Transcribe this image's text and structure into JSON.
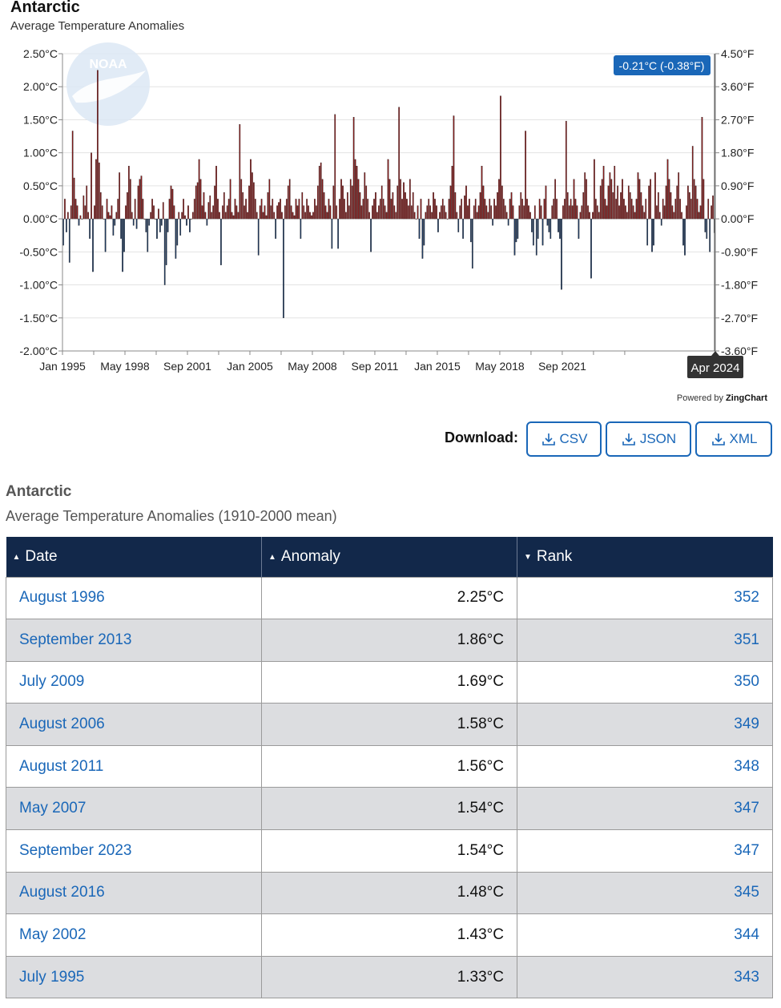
{
  "chart": {
    "title": "Antarctic",
    "subtitle": "Average Temperature Anomalies",
    "tooltip": "-0.21°C (-0.38°F)",
    "crosshair_label": "Apr 2024",
    "powered_by_prefix": "Powered by",
    "powered_by_brand": "ZingChart",
    "logo_text": "NOAA",
    "colors": {
      "positive": "#8b1a1a",
      "negative": "#1f3b63",
      "tooltip_bg": "#1a67b8",
      "crosshair_bg": "#333333"
    }
  },
  "chart_data": {
    "type": "bar",
    "title": "Antarctic",
    "subtitle": "Average Temperature Anomalies",
    "x_tick_labels": [
      "Jan 1995",
      "May 1998",
      "Sep 2001",
      "Jan 2005",
      "May 2008",
      "Sep 2011",
      "Jan 2015",
      "May 2018",
      "Sep 2021"
    ],
    "y_left_ticks": [
      "2.50°C",
      "2.00°C",
      "1.50°C",
      "1.00°C",
      "0.50°C",
      "0.00°C",
      "-0.50°C",
      "-1.00°C",
      "-1.50°C",
      "-2.00°C"
    ],
    "y_right_ticks": [
      "4.50°F",
      "3.60°F",
      "2.70°F",
      "1.80°F",
      "0.90°F",
      "0.00°F",
      "-0.90°F",
      "-1.80°F",
      "-2.70°F",
      "-3.60°F"
    ],
    "ylim": [
      -2.0,
      2.5
    ],
    "start": "Jan 1995",
    "end": "Apr 2024",
    "grid": true,
    "values": [
      -0.4,
      0.3,
      -0.2,
      0.1,
      -0.66,
      0.2,
      1.33,
      0.62,
      0.3,
      0.2,
      -0.1,
      0.05,
      0.0,
      0.35,
      0.2,
      0.5,
      0.1,
      -0.3,
      1.0,
      -0.8,
      0.2,
      0.9,
      2.25,
      0.85,
      0.4,
      0.2,
      0.0,
      -0.5,
      0.3,
      0.1,
      0.05,
      0.2,
      -0.25,
      -0.1,
      0.1,
      0.3,
      0.7,
      -0.3,
      -0.8,
      -0.5,
      0.2,
      0.4,
      0.8,
      0.6,
      0.1,
      -0.1,
      0.3,
      -0.15,
      0.5,
      0.6,
      0.65,
      0.3,
      0.0,
      -0.2,
      -0.5,
      -0.1,
      0.1,
      0.3,
      0.2,
      0.0,
      -0.3,
      0.15,
      -0.2,
      -0.1,
      0.25,
      -1.0,
      -0.7,
      -0.2,
      0.3,
      0.5,
      0.45,
      0.2,
      -0.6,
      -0.4,
      0.1,
      -0.25,
      0.1,
      0.3,
      0.05,
      -0.1,
      0.2,
      -0.2,
      0.0,
      0.1,
      0.3,
      0.5,
      0.55,
      0.9,
      0.6,
      0.2,
      0.4,
      0.1,
      -0.1,
      0.25,
      0.35,
      0.1,
      0.2,
      0.5,
      0.8,
      0.3,
      0.1,
      -0.7,
      0.2,
      0.4,
      0.1,
      0.2,
      0.3,
      0.6,
      0.1,
      0.05,
      0.3,
      0.2,
      0.1,
      1.43,
      0.6,
      0.4,
      0.2,
      0.3,
      0.1,
      0.5,
      0.9,
      0.7,
      0.55,
      0.3,
      0.1,
      -0.55,
      0.2,
      0.3,
      0.1,
      0.2,
      0.05,
      0.4,
      0.6,
      0.2,
      0.3,
      0.1,
      -0.3,
      0.2,
      0.25,
      0.3,
      0.1,
      -1.5,
      0.2,
      0.3,
      0.5,
      0.6,
      0.2,
      0.1,
      0.05,
      0.3,
      0.2,
      0.3,
      -0.3,
      0.4,
      0.2,
      0.1,
      0.3,
      0.2,
      0.1,
      0.05,
      0.1,
      0.3,
      0.2,
      0.5,
      0.8,
      0.85,
      0.6,
      0.4,
      0.2,
      0.1,
      0.3,
      0.2,
      -0.45,
      0.5,
      1.58,
      0.2,
      -0.45,
      0.3,
      0.6,
      0.5,
      0.3,
      0.1,
      0.4,
      0.2,
      0.6,
      0.5,
      1.54,
      0.9,
      0.8,
      0.6,
      0.4,
      0.2,
      0.3,
      0.7,
      0.5,
      0.3,
      0.1,
      -0.5,
      0.2,
      0.3,
      0.4,
      0.1,
      0.2,
      0.3,
      0.5,
      0.3,
      0.2,
      0.1,
      0.9,
      0.6,
      0.3,
      0.4,
      0.2,
      0.1,
      0.5,
      1.69,
      0.6,
      0.3,
      0.55,
      0.4,
      0.3,
      0.2,
      0.6,
      0.2,
      0.4,
      0.1,
      0.0,
      0.2,
      -0.3,
      0.3,
      -0.6,
      -0.4,
      0.1,
      0.2,
      0.3,
      0.2,
      0.1,
      0.4,
      0.3,
      0.2,
      -0.2,
      0.1,
      0.2,
      0.3,
      0.2,
      0.1,
      0.0,
      0.3,
      0.5,
      0.8,
      1.56,
      0.4,
      0.1,
      -0.2,
      0.2,
      0.3,
      -0.3,
      0.35,
      0.5,
      0.2,
      0.3,
      -0.35,
      -0.75,
      0.2,
      0.3,
      0.1,
      0.2,
      0.4,
      0.8,
      0.5,
      0.3,
      0.2,
      0.1,
      0.3,
      0.2,
      -0.1,
      0.3,
      0.2,
      0.4,
      0.6,
      1.86,
      0.5,
      0.3,
      0.2,
      0.1,
      -0.1,
      0.3,
      0.4,
      0.2,
      -0.55,
      -0.35,
      -0.3,
      0.2,
      0.4,
      0.3,
      0.2,
      1.33,
      0.3,
      0.2,
      0.1,
      -0.2,
      -0.4,
      0.2,
      -0.55,
      -0.3,
      0.3,
      0.2,
      -0.4,
      0.3,
      0.5,
      -0.1,
      -0.2,
      -0.3,
      0.2,
      0.3,
      0.6,
      0.3,
      -0.2,
      -0.3,
      -1.07,
      0.2,
      0.3,
      1.48,
      0.4,
      0.2,
      0.3,
      0.2,
      0.6,
      0.3,
      0.2,
      -0.3,
      0.1,
      0.2,
      0.4,
      0.7,
      0.6,
      0.2,
      0.1,
      -0.9,
      0.1,
      0.9,
      0.3,
      0.2,
      0.1,
      0.5,
      0.6,
      0.8,
      0.3,
      0.2,
      0.5,
      0.7,
      0.6,
      0.4,
      0.8,
      0.3,
      0.5,
      0.2,
      0.4,
      0.6,
      0.3,
      0.2,
      0.1,
      0.5,
      0.4,
      0.3,
      0.2,
      0.1,
      0.3,
      0.7,
      0.6,
      0.4,
      0.2,
      0.1,
      0.3,
      -0.4,
      0.5,
      0.6,
      -0.5,
      -0.4,
      0.7,
      0.2,
      0.4,
      0.1,
      -0.1,
      0.3,
      0.2,
      0.5,
      0.9,
      0.6,
      0.4,
      0.2,
      0.1,
      0.3,
      0.5,
      0.7,
      0.3,
      0.1,
      -0.4,
      -0.55,
      0.2,
      0.5,
      0.4,
      0.3,
      1.1,
      0.6,
      0.5,
      0.3,
      0.1,
      0.2,
      1.54,
      0.6,
      -0.2,
      -0.3,
      0.3,
      -0.5,
      0.2,
      0.35,
      -0.21
    ]
  },
  "download": {
    "label": "Download:",
    "buttons": [
      "CSV",
      "JSON",
      "XML"
    ]
  },
  "table": {
    "title": "Antarctic",
    "subtitle": "Average Temperature Anomalies (1910-2000 mean)",
    "columns": [
      "Date",
      "Anomaly",
      "Rank"
    ],
    "rows": [
      {
        "date": "August 1996",
        "anomaly": "2.25°C",
        "rank": "352"
      },
      {
        "date": "September 2013",
        "anomaly": "1.86°C",
        "rank": "351"
      },
      {
        "date": "July 2009",
        "anomaly": "1.69°C",
        "rank": "350"
      },
      {
        "date": "August 2006",
        "anomaly": "1.58°C",
        "rank": "349"
      },
      {
        "date": "August 2011",
        "anomaly": "1.56°C",
        "rank": "348"
      },
      {
        "date": "May 2007",
        "anomaly": "1.54°C",
        "rank": "347"
      },
      {
        "date": "September 2023",
        "anomaly": "1.54°C",
        "rank": "347"
      },
      {
        "date": "August 2016",
        "anomaly": "1.48°C",
        "rank": "345"
      },
      {
        "date": "May 2002",
        "anomaly": "1.43°C",
        "rank": "344"
      },
      {
        "date": "July 1995",
        "anomaly": "1.33°C",
        "rank": "343"
      }
    ]
  }
}
